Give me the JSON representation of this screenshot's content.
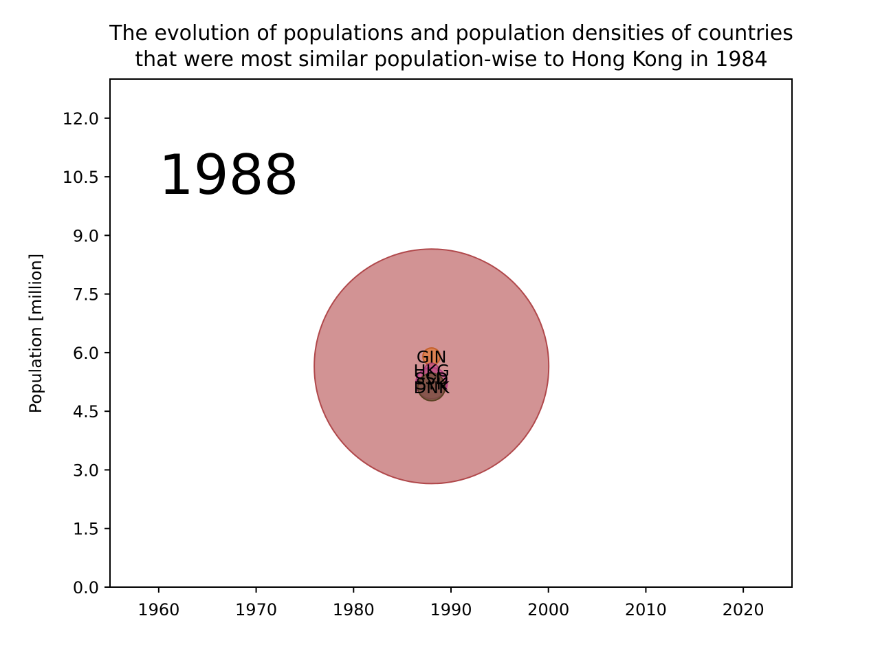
{
  "chart_data": {
    "type": "scatter",
    "title_lines": [
      "The evolution of populations and population densities of countries",
      "that were most similar population-wise to Hong Kong in 1984"
    ],
    "ylabel": "Population [million]",
    "year_label": "1988",
    "xlim": [
      1955,
      2025
    ],
    "ylim": [
      0,
      13
    ],
    "x_ticks": [
      1960,
      1970,
      1980,
      1990,
      2000,
      2010,
      2020
    ],
    "y_ticks": [
      0.0,
      1.5,
      3.0,
      4.5,
      6.0,
      7.5,
      9.0,
      10.5,
      12.0
    ],
    "grid": false,
    "points": [
      {
        "label": "",
        "x": 1988,
        "y": 5.65,
        "bubble_radius_millions": 3.0,
        "color": "#c0696b",
        "edge": "#b0484b"
      },
      {
        "label": "GIN",
        "x": 1988,
        "y": 5.9,
        "bubble_radius_millions": 0.22,
        "color": "#e07b39",
        "edge": "#c4602a"
      },
      {
        "label": "HKG",
        "x": 1988,
        "y": 5.55,
        "bubble_radius_millions": 0.18,
        "color": "#c55a8a",
        "edge": "#a8406c"
      },
      {
        "label": "SSD",
        "x": 1988,
        "y": 5.35,
        "bubble_radius_millions": 0.25,
        "color": "#7f6a3a",
        "edge": "#6a5628"
      },
      {
        "label": "SYK",
        "x": 1988,
        "y": 5.22,
        "bubble_radius_millions": 0.4,
        "color": "#d2509a",
        "edge": "#b13c80"
      },
      {
        "label": "DNK",
        "x": 1988,
        "y": 5.12,
        "bubble_radius_millions": 0.35,
        "color": "#6b5230",
        "edge": "#5a4224"
      }
    ]
  }
}
